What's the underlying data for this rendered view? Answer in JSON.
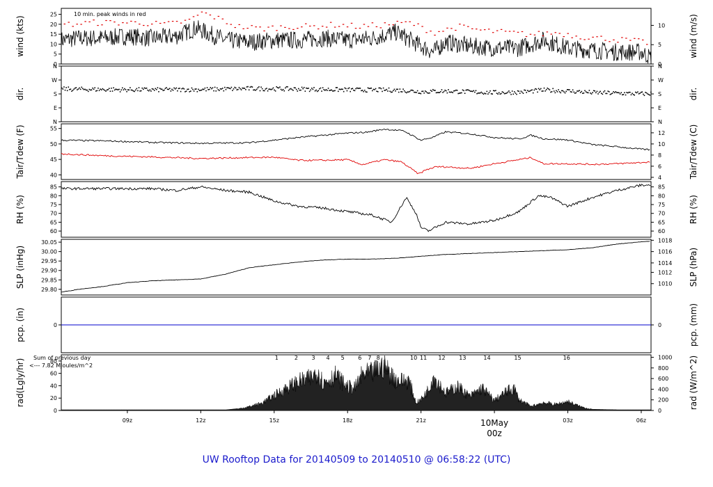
{
  "title": "UW Rooftop Data for 20140509  to  20140510 @ 06:58:22  (UTC)",
  "colors": {
    "primary": "#000000",
    "peak": "#e00000",
    "dew": "#e00000",
    "precip": "#0000cc",
    "annotation": "#9900cc",
    "title": "#1a1acc",
    "date": "#cc0000"
  },
  "time_axis": {
    "range_hours": [
      6.3,
      30.4
    ],
    "ticks": [
      {
        "label": "09z",
        "hour": 9
      },
      {
        "label": "12z",
        "hour": 12
      },
      {
        "label": "15z",
        "hour": 15
      },
      {
        "label": "18z",
        "hour": 18
      },
      {
        "label": "21z",
        "hour": 21
      },
      {
        "label": "03z",
        "hour": 27
      },
      {
        "label": "06z",
        "hour": 30
      }
    ],
    "date_label": "10May",
    "date_sub": "00z",
    "date_hour": 24
  },
  "chart_data": [
    {
      "type": "line",
      "panel": "wind",
      "ylabel": "wind (kts)",
      "ylabel_right": "wind (m/s)",
      "ylim": [
        0,
        28
      ],
      "yticks": [
        0,
        5,
        10,
        15,
        20,
        25
      ],
      "right_ticks": [
        {
          "label": "0",
          "value": 0
        },
        {
          "label": "5",
          "value": 9.72
        },
        {
          "label": "10",
          "value": 19.44
        }
      ],
      "annotation": "10 min. peak winds in red",
      "series": [
        {
          "x": [
            6.3,
            7,
            8,
            9,
            10,
            11,
            11.8,
            12,
            13,
            14,
            15,
            16,
            17,
            18,
            19,
            20,
            21,
            21.5,
            22,
            23,
            24,
            25,
            26,
            27,
            28,
            29,
            30,
            30.4
          ],
          "y": [
            12,
            13,
            13,
            14,
            13,
            14,
            18,
            17,
            12,
            11,
            12,
            12,
            13,
            12,
            13,
            16,
            9,
            6,
            11,
            9,
            8,
            8,
            12,
            8,
            7,
            6,
            6,
            3
          ]
        },
        {
          "name": "10 min. peak winds",
          "x": [
            6.5,
            7.5,
            8.5,
            9.5,
            10.5,
            11.5,
            12,
            12.5,
            13.5,
            14.5,
            15.5,
            16.5,
            17.5,
            18.5,
            19.5,
            20.5,
            21.5,
            22.5,
            23.5,
            24.5,
            25.5,
            26.5,
            27.5,
            28.5,
            29.5,
            30.2
          ],
          "y": [
            20,
            21,
            21,
            21,
            20,
            22,
            26,
            24,
            19,
            18,
            19,
            19,
            20,
            19,
            20,
            21,
            16,
            19,
            17,
            16,
            15,
            16,
            14,
            13,
            12,
            11
          ]
        }
      ]
    },
    {
      "type": "scatter",
      "panel": "direction",
      "ylabel": "dir.",
      "ylabel_right": "dir.",
      "ylim": [
        0,
        360
      ],
      "yticks": [
        {
          "label": "N",
          "value": 360
        },
        {
          "label": "W",
          "value": 270
        },
        {
          "label": "S",
          "value": 180
        },
        {
          "label": "E",
          "value": 90
        },
        {
          "label": "N",
          "value": 0
        }
      ],
      "series": [
        {
          "x": [
            6.3,
            8,
            10,
            12,
            14,
            16,
            18,
            20,
            21,
            22,
            23,
            24,
            25,
            26,
            27,
            28,
            29,
            30,
            30.4
          ],
          "y": [
            215,
            212,
            210,
            212,
            218,
            215,
            210,
            208,
            198,
            202,
            196,
            192,
            195,
            208,
            202,
            192,
            188,
            184,
            186
          ]
        }
      ]
    },
    {
      "type": "line",
      "panel": "temperature",
      "ylabel": "Tair/Tdew (F)",
      "ylabel_right": "Tair/Tdew (C)",
      "ylim": [
        38.5,
        56.5
      ],
      "yticks": [
        40,
        45,
        50,
        55
      ],
      "right_ticks": [
        {
          "label": "4",
          "value": 39.2
        },
        {
          "label": "6",
          "value": 42.8
        },
        {
          "label": "8",
          "value": 46.4
        },
        {
          "label": "10",
          "value": 50
        },
        {
          "label": "12",
          "value": 53.6
        }
      ],
      "series": [
        {
          "x": [
            6.3,
            8,
            10,
            12,
            14,
            16,
            17,
            18,
            18.8,
            19.5,
            20.3,
            21,
            21.5,
            22,
            23,
            24,
            25,
            25.5,
            26,
            27,
            28,
            29,
            30,
            30.4
          ],
          "y": [
            51.2,
            51,
            50.5,
            50.2,
            50.4,
            52.1,
            52.8,
            53.5,
            53.8,
            54.8,
            54.2,
            51.2,
            52.2,
            53.9,
            53.3,
            52.1,
            51.6,
            52.8,
            51.7,
            51.3,
            49.8,
            49.1,
            48.3,
            48.1
          ]
        },
        {
          "x": [
            6.3,
            8,
            10,
            12,
            14,
            15,
            16,
            17,
            18,
            18.6,
            19.5,
            20.2,
            20.9,
            21.2,
            21.6,
            22,
            23,
            24,
            25.2,
            25.5,
            26,
            27,
            28,
            29,
            30,
            30.4
          ],
          "y": [
            46.8,
            46.2,
            45.8,
            45.3,
            45.6,
            45.7,
            44.7,
            44.7,
            44.9,
            43.3,
            44.9,
            44.2,
            40.3,
            41.6,
            42.6,
            42.6,
            42.1,
            43.6,
            45.2,
            45.6,
            43.6,
            43.6,
            43.4,
            43.6,
            44,
            44.2
          ]
        }
      ]
    },
    {
      "type": "line",
      "panel": "humidity",
      "ylabel": "RH (%)",
      "ylabel_right": "RH (%)",
      "ylim": [
        56.5,
        88
      ],
      "yticks": [
        60,
        65,
        70,
        75,
        80,
        85
      ],
      "right_ticks": [
        {
          "label": "60",
          "value": 60
        },
        {
          "label": "65",
          "value": 65
        },
        {
          "label": "70",
          "value": 70
        },
        {
          "label": "75",
          "value": 75
        },
        {
          "label": "80",
          "value": 80
        },
        {
          "label": "85",
          "value": 85
        }
      ],
      "series": [
        {
          "x": [
            6.3,
            8,
            10,
            11,
            12,
            13,
            14,
            15,
            16,
            17,
            18,
            19,
            19.8,
            20.4,
            20.8,
            21,
            21.3,
            22,
            23,
            24,
            25,
            25.8,
            26.3,
            27,
            28,
            29,
            30,
            30.4
          ],
          "y": [
            84,
            84,
            84,
            83,
            85,
            83,
            82,
            77,
            74,
            73,
            71,
            69,
            65,
            79,
            70,
            62,
            60,
            65,
            64,
            66,
            71,
            80,
            79,
            74,
            79,
            83,
            86,
            86
          ]
        }
      ]
    },
    {
      "type": "line",
      "panel": "pressure",
      "ylabel": "SLP (inHg)",
      "ylabel_right": "SLP (hPa)",
      "ylim": [
        29.77,
        30.065
      ],
      "yticks": [
        29.8,
        29.85,
        29.9,
        29.95,
        30.0,
        30.05
      ],
      "ytick_labels": [
        "29.80",
        "29.85",
        "29.90",
        "29.95",
        "30.00",
        "30.05"
      ],
      "right_ticks": [
        {
          "label": "1010",
          "value": 29.83
        },
        {
          "label": "1012",
          "value": 29.89
        },
        {
          "label": "1014",
          "value": 29.94
        },
        {
          "label": "1016",
          "value": 30.0
        },
        {
          "label": "1018",
          "value": 30.06
        }
      ],
      "series": [
        {
          "x": [
            6.3,
            7,
            8,
            9,
            10,
            11,
            12,
            13,
            14,
            15,
            16,
            17,
            18,
            19,
            20,
            21,
            22,
            23,
            24,
            25,
            26,
            27,
            28,
            29,
            30,
            30.4
          ],
          "y": [
            29.785,
            29.8,
            29.815,
            29.835,
            29.845,
            29.85,
            29.855,
            29.88,
            29.915,
            29.93,
            29.945,
            29.955,
            29.96,
            29.96,
            29.965,
            29.975,
            29.985,
            29.99,
            29.995,
            30.0,
            30.005,
            30.01,
            30.02,
            30.04,
            30.052,
            30.055
          ]
        }
      ]
    },
    {
      "type": "line",
      "panel": "precipitation",
      "ylabel": "pcp. (in)",
      "ylabel_right": "pcp. (mm)",
      "ylim": [
        -1,
        1
      ],
      "yticks": [
        0
      ],
      "right_ticks": [
        {
          "label": "0",
          "value": 0
        }
      ],
      "series": [
        {
          "x": [
            6.3,
            30.4
          ],
          "y": [
            0,
            0
          ]
        }
      ]
    },
    {
      "type": "area",
      "panel": "radiation",
      "ylabel": "rad(Lgly/hr)",
      "ylabel_right": "rad (W/m^2)",
      "ylim": [
        0,
        90
      ],
      "yticks": [
        0,
        20,
        40,
        60,
        80
      ],
      "right_ticks": [
        {
          "label": "0",
          "value": 0
        },
        {
          "label": "200",
          "value": 17.2
        },
        {
          "label": "400",
          "value": 34.4
        },
        {
          "label": "600",
          "value": 51.6
        },
        {
          "label": "800",
          "value": 68.8
        },
        {
          "label": "1000",
          "value": 86
        }
      ],
      "annotation": "Sum of previous day",
      "annotation2": "<--- 7.82 MJoules/m^2",
      "hour_labels": [
        {
          "label": "1",
          "hour": 15.1
        },
        {
          "label": "2",
          "hour": 15.9
        },
        {
          "label": "3",
          "hour": 16.6
        },
        {
          "label": "4",
          "hour": 17.2
        },
        {
          "label": "5",
          "hour": 17.8
        },
        {
          "label": "6",
          "hour": 18.5
        },
        {
          "label": "7",
          "hour": 18.9
        },
        {
          "label": "8",
          "hour": 19.25
        },
        {
          "label": "10",
          "hour": 20.7
        },
        {
          "label": "11",
          "hour": 21.1
        },
        {
          "label": "12",
          "hour": 21.85
        },
        {
          "label": "13",
          "hour": 22.7
        },
        {
          "label": "14",
          "hour": 23.7
        },
        {
          "label": "15",
          "hour": 24.95
        },
        {
          "label": "16",
          "hour": 26.95
        }
      ],
      "series": [
        {
          "x": [
            6.3,
            12,
            13,
            13.5,
            14,
            14.5,
            15,
            15.5,
            16,
            16.5,
            16.8,
            17,
            17.5,
            18,
            18.3,
            18.6,
            19,
            19.5,
            19.8,
            20,
            20.5,
            20.8,
            21,
            21.3,
            21.5,
            22,
            22.5,
            23,
            23.5,
            24,
            24.5,
            24.8,
            25,
            25.5,
            26,
            26.5,
            27,
            27.5,
            28,
            30.4
          ],
          "y": [
            0,
            0,
            1,
            3,
            8,
            15,
            30,
            45,
            58,
            65,
            80,
            55,
            70,
            48,
            45,
            72,
            75,
            90,
            70,
            60,
            60,
            15,
            22,
            42,
            70,
            35,
            48,
            28,
            45,
            20,
            38,
            45,
            22,
            8,
            16,
            12,
            18,
            8,
            2,
            0
          ]
        }
      ]
    }
  ]
}
